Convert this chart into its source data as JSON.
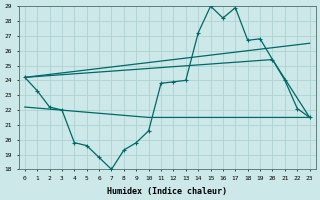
{
  "bg_color": "#cce8e8",
  "line_color": "#006868",
  "grid_color": "#aacece",
  "xlabel": "Humidex (Indice chaleur)",
  "ylim": [
    18,
    29
  ],
  "yticks": [
    18,
    19,
    20,
    21,
    22,
    23,
    24,
    25,
    26,
    27,
    28,
    29
  ],
  "x_ticks": [
    0,
    1,
    2,
    3,
    4,
    5,
    6,
    7,
    8,
    9,
    10,
    11,
    12,
    13,
    14,
    15,
    16,
    17,
    18,
    19,
    20,
    21,
    22,
    23
  ],
  "line_main": {
    "x": [
      0,
      1,
      2,
      3,
      4,
      5,
      6,
      7,
      8,
      9,
      10,
      11,
      12,
      13,
      14,
      15,
      16,
      17,
      18,
      19,
      20,
      21,
      22,
      23
    ],
    "y": [
      24.2,
      23.3,
      22.2,
      22.0,
      19.8,
      19.6,
      18.8,
      18.0,
      19.3,
      19.8,
      20.6,
      23.8,
      23.9,
      24.0,
      27.2,
      29.0,
      28.2,
      28.9,
      26.7,
      26.8,
      25.4,
      24.0,
      22.1,
      21.5
    ]
  },
  "line_top": {
    "x": [
      0,
      23
    ],
    "y": [
      24.2,
      26.5
    ]
  },
  "line_mid": {
    "x": [
      0,
      20,
      23
    ],
    "y": [
      24.2,
      25.4,
      21.5
    ]
  },
  "line_bot": {
    "x": [
      0,
      10,
      23
    ],
    "y": [
      22.2,
      21.5,
      21.5
    ]
  }
}
